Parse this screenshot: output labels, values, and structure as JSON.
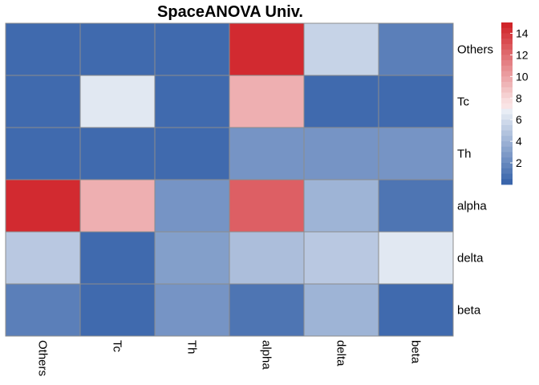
{
  "chart_data": {
    "type": "heatmap",
    "title": "SpaceANOVA Univ.",
    "rows": [
      "Others",
      "Tc",
      "Th",
      "alpha",
      "delta",
      "beta"
    ],
    "columns": [
      "Others",
      "Tc",
      "Th",
      "alpha",
      "delta",
      "beta"
    ],
    "values": [
      [
        0.5,
        0.5,
        0.5,
        14.5,
        5.5,
        1.5
      ],
      [
        0.5,
        6.5,
        0.5,
        9.5,
        0.5,
        0.5
      ],
      [
        0.5,
        0.5,
        0.5,
        2.5,
        2.5,
        2.5
      ],
      [
        14.5,
        9.5,
        2.5,
        12.5,
        4.0,
        1.0
      ],
      [
        5.0,
        0.5,
        3.0,
        4.5,
        5.0,
        6.5
      ],
      [
        1.5,
        0.5,
        2.5,
        1.0,
        4.0,
        0.5
      ]
    ],
    "legend": {
      "position": "right",
      "ticks": [
        2,
        4,
        6,
        8,
        10,
        12,
        14
      ],
      "range": [
        0,
        15
      ],
      "low_color": "#3360a8",
      "mid_color": "#ffffff",
      "high_color": "#cf1d23",
      "blue_range": [
        0,
        7
      ],
      "red_range": [
        7.5,
        15
      ]
    },
    "grid_color": "#8c8c8c"
  }
}
